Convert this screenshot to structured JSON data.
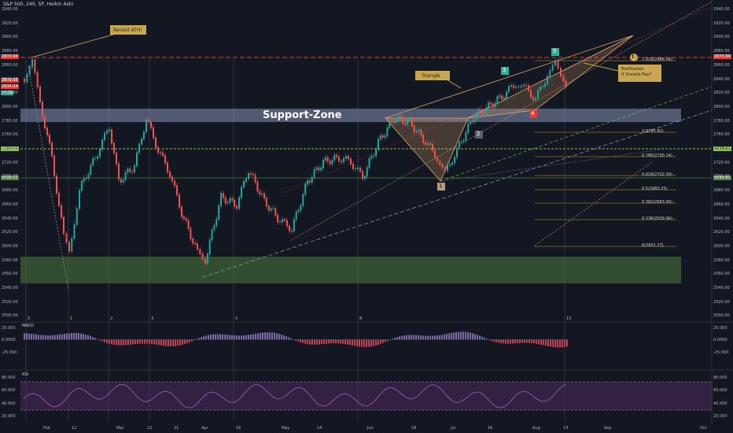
{
  "header": {
    "title": "S&P 500, 240, SP, Heikin Ashi"
  },
  "colors": {
    "bg": "#131722",
    "up": "#26a69a",
    "down": "#ef5350",
    "support": "#8792b5",
    "demand": "#4f7a3d",
    "fib": "#c9a227",
    "triangle": "#e0a56a",
    "rsi_band": "#5b2e6b"
  },
  "price_axis": {
    "ticks": [
      "2940.00",
      "2920.00",
      "2900.00",
      "2880.00",
      "2860.00",
      "2840.00",
      "2820.00",
      "2800.00",
      "2780.00",
      "2760.00",
      "2740.00",
      "2720.00",
      "2700.00",
      "2680.00",
      "2660.00",
      "2640.00",
      "2620.00",
      "2600.00",
      "2580.00",
      "2560.00",
      "2540.00",
      "2520.00",
      "2500.00"
    ]
  },
  "price_tags": {
    "ath": "2873.94",
    "current": "2839.95",
    "c2": "2834.24",
    "c3": "15:56",
    "support_line": "2739.01",
    "low_line": "2699.81",
    "right_ath": "2873.94",
    "right_support": "2739.01",
    "right_low": "2699.81"
  },
  "time_axis": {
    "labels": [
      "Feb",
      "12",
      "Mar",
      "12",
      "21",
      "Apr",
      "16",
      "May",
      "14",
      "Jun",
      "18",
      "Jul",
      "16",
      "Aug",
      "13",
      "Sep",
      "Oct"
    ]
  },
  "annotations": {
    "recent_ath": "Recent ATH!",
    "triangle": "Triangle",
    "support_zone": "Support-Zone",
    "profit": "Profitsales\nif Double-Top?",
    "exclaim": "!"
  },
  "wave_labels": {
    "w1": "1",
    "w2": "2",
    "w3": "3",
    "w4": "4",
    "w5": "5"
  },
  "cycle_labels": [
    "0",
    "1",
    "2",
    "3",
    "5",
    "8",
    "13"
  ],
  "fib_levels": [
    "1.618(2866.54)",
    "1(2765.82)",
    "0.786(2730.14)",
    "0.618(2702.59)",
    "0.5(2683.25)",
    "0.382(2663.90)",
    "0.236(2639.96)",
    "0(2601.27)"
  ],
  "macd": {
    "title": "MACD",
    "ticks": [
      "25.000",
      "0.0000",
      "-25.000"
    ]
  },
  "rsi": {
    "title": "RSI",
    "ticks": [
      "80.000",
      "60.000",
      "40.000",
      "20.000"
    ]
  }
}
